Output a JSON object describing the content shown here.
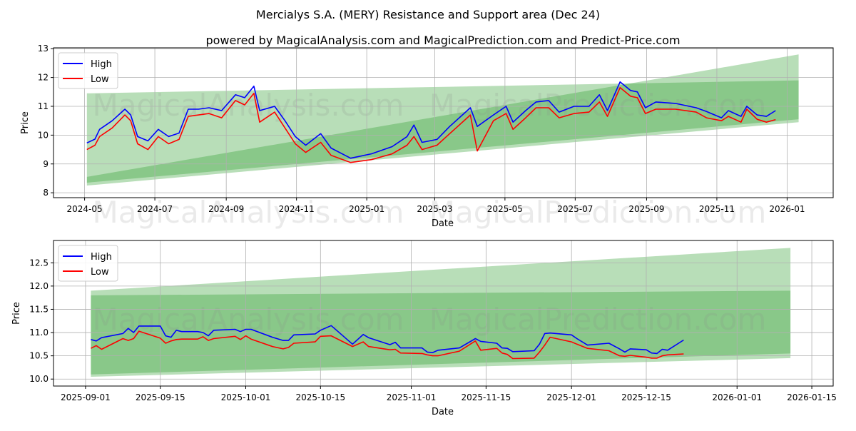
{
  "title": "Mercialys S.A. (MERY) Resistance and Support area (Dec 24)",
  "subtitle": "powered by MagicalAnalysis.com and MagicalPrediction.com and Predict-Price.com",
  "watermarks": [
    "MagicalAnalysis.com",
    "MagicalPrediction.com"
  ],
  "colors": {
    "high": "#0000ff",
    "low": "#ff0000",
    "band": "#2e9e2e",
    "grid": "#b0b0b0"
  },
  "chart_data": [
    {
      "type": "line",
      "xlabel": "Date",
      "ylabel": "Price",
      "xlim": [
        "2024-04-04",
        "2026-02-10"
      ],
      "ylim": [
        7.83,
        13.03
      ],
      "grid": true,
      "legend": {
        "placement": "top-left",
        "entries": [
          "High",
          "Low"
        ]
      },
      "xticks": [
        "2024-05",
        "2024-07",
        "2024-09",
        "2024-11",
        "2025-01",
        "2025-03",
        "2025-05",
        "2025-07",
        "2025-09",
        "2025-11",
        "2026-01"
      ],
      "xtick_dates": [
        "2024-05-01",
        "2024-07-01",
        "2024-09-01",
        "2024-11-01",
        "2025-01-01",
        "2025-03-01",
        "2025-05-01",
        "2025-07-01",
        "2025-09-01",
        "2025-11-01",
        "2026-01-01"
      ],
      "yticks": [
        8,
        9,
        10,
        11,
        12,
        13
      ],
      "bands": [
        {
          "start": "2024-05-03",
          "end": "2026-01-11",
          "lower": [
            8.35,
            10.55
          ],
          "upper": [
            11.45,
            11.9
          ]
        },
        {
          "start": "2024-05-03",
          "end": "2026-01-11",
          "lower": [
            8.25,
            10.45
          ],
          "upper": [
            8.55,
            12.8
          ]
        }
      ],
      "x": [
        "2024-05-03",
        "2024-05-10",
        "2024-05-14",
        "2024-05-25",
        "2024-06-05",
        "2024-06-10",
        "2024-06-16",
        "2024-06-25",
        "2024-07-04",
        "2024-07-13",
        "2024-07-22",
        "2024-07-30",
        "2024-08-08",
        "2024-08-17",
        "2024-08-28",
        "2024-09-09",
        "2024-09-17",
        "2024-09-25",
        "2024-09-30",
        "2024-10-13",
        "2024-10-22",
        "2024-10-31",
        "2024-11-09",
        "2024-11-22",
        "2024-12-01",
        "2024-12-18",
        "2025-01-05",
        "2025-01-23",
        "2025-02-05",
        "2025-02-11",
        "2025-02-18",
        "2025-03-03",
        "2025-03-14",
        "2025-04-01",
        "2025-04-07",
        "2025-04-21",
        "2025-05-02",
        "2025-05-08",
        "2025-05-19",
        "2025-05-28",
        "2025-06-08",
        "2025-06-17",
        "2025-06-30",
        "2025-07-13",
        "2025-07-22",
        "2025-07-29",
        "2025-08-09",
        "2025-08-18",
        "2025-08-24",
        "2025-08-31",
        "2025-09-09",
        "2025-09-26",
        "2025-10-14",
        "2025-10-23",
        "2025-11-05",
        "2025-11-11",
        "2025-11-22",
        "2025-11-27",
        "2025-12-06",
        "2025-12-14",
        "2025-12-22"
      ],
      "series": [
        {
          "name": "High",
          "values": [
            9.73,
            9.86,
            10.2,
            10.5,
            10.9,
            10.7,
            9.95,
            9.8,
            10.2,
            9.95,
            10.07,
            10.9,
            10.9,
            10.95,
            10.85,
            11.4,
            11.3,
            11.7,
            10.85,
            11.0,
            10.5,
            9.95,
            9.65,
            10.05,
            9.55,
            9.2,
            9.35,
            9.6,
            9.95,
            10.35,
            9.75,
            9.85,
            10.3,
            10.95,
            10.3,
            10.7,
            11.0,
            10.45,
            10.85,
            11.15,
            11.2,
            10.8,
            11.0,
            11.0,
            11.4,
            10.85,
            11.85,
            11.55,
            11.5,
            10.95,
            11.15,
            11.1,
            10.95,
            10.82,
            10.6,
            10.85,
            10.65,
            11.0,
            10.7,
            10.65,
            10.85
          ]
        },
        {
          "name": "Low",
          "values": [
            9.5,
            9.65,
            9.95,
            10.25,
            10.7,
            10.5,
            9.7,
            9.5,
            9.95,
            9.7,
            9.85,
            10.65,
            10.7,
            10.75,
            10.6,
            11.2,
            11.05,
            11.45,
            10.45,
            10.8,
            10.25,
            9.7,
            9.4,
            9.75,
            9.3,
            9.05,
            9.15,
            9.35,
            9.65,
            9.95,
            9.5,
            9.65,
            10.05,
            10.7,
            9.45,
            10.5,
            10.75,
            10.2,
            10.6,
            10.95,
            10.95,
            10.6,
            10.75,
            10.8,
            11.15,
            10.65,
            11.65,
            11.35,
            11.3,
            10.75,
            10.9,
            10.9,
            10.8,
            10.6,
            10.5,
            10.65,
            10.45,
            10.9,
            10.55,
            10.45,
            10.54
          ]
        }
      ]
    },
    {
      "type": "line",
      "xlabel": "Date",
      "ylabel": "Price",
      "xlim": [
        "2025-08-26",
        "2026-01-19"
      ],
      "ylim": [
        9.85,
        12.98
      ],
      "grid": true,
      "legend": {
        "placement": "top-left",
        "entries": [
          "High",
          "Low"
        ]
      },
      "xticks": [
        "2025-09-01",
        "2025-09-15",
        "2025-10-01",
        "2025-10-15",
        "2025-11-01",
        "2025-11-15",
        "2025-12-01",
        "2025-12-15",
        "2026-01-01",
        "2026-01-15"
      ],
      "xtick_dates": [
        "2025-09-01",
        "2025-09-15",
        "2025-10-01",
        "2025-10-15",
        "2025-11-01",
        "2025-11-15",
        "2025-12-01",
        "2025-12-15",
        "2026-01-01",
        "2026-01-15"
      ],
      "yticks": [
        "10.0",
        "10.5",
        "11.0",
        "11.5",
        "12.0",
        "12.5"
      ],
      "bands": [
        {
          "start": "2025-09-02",
          "end": "2026-01-11",
          "lower": [
            10.1,
            10.55
          ],
          "upper": [
            11.8,
            11.9
          ]
        },
        {
          "start": "2025-09-02",
          "end": "2026-01-11",
          "lower": [
            10.05,
            10.45
          ],
          "upper": [
            11.9,
            12.82
          ]
        }
      ],
      "x": [
        "2025-09-02",
        "2025-09-03",
        "2025-09-04",
        "2025-09-08",
        "2025-09-09",
        "2025-09-10",
        "2025-09-11",
        "2025-09-15",
        "2025-09-16",
        "2025-09-17",
        "2025-09-18",
        "2025-09-19",
        "2025-09-22",
        "2025-09-23",
        "2025-09-24",
        "2025-09-25",
        "2025-09-29",
        "2025-09-30",
        "2025-10-01",
        "2025-10-02",
        "2025-10-06",
        "2025-10-08",
        "2025-10-09",
        "2025-10-10",
        "2025-10-14",
        "2025-10-15",
        "2025-10-17",
        "2025-10-21",
        "2025-10-23",
        "2025-10-24",
        "2025-10-28",
        "2025-10-29",
        "2025-10-30",
        "2025-11-03",
        "2025-11-04",
        "2025-11-05",
        "2025-11-06",
        "2025-11-10",
        "2025-11-13",
        "2025-11-14",
        "2025-11-17",
        "2025-11-18",
        "2025-11-19",
        "2025-11-20",
        "2025-11-24",
        "2025-11-25",
        "2025-11-26",
        "2025-11-27",
        "2025-12-01",
        "2025-12-02",
        "2025-12-04",
        "2025-12-08",
        "2025-12-10",
        "2025-12-11",
        "2025-12-12",
        "2025-12-15",
        "2025-12-16",
        "2025-12-17",
        "2025-12-18",
        "2025-12-19",
        "2025-12-22"
      ],
      "series": [
        {
          "name": "High",
          "values": [
            10.85,
            10.82,
            10.89,
            10.98,
            11.09,
            11.0,
            11.14,
            11.14,
            10.93,
            10.9,
            11.05,
            11.02,
            11.02,
            11.0,
            10.93,
            11.05,
            11.07,
            11.02,
            11.07,
            11.07,
            10.9,
            10.83,
            10.83,
            10.95,
            10.97,
            11.05,
            11.15,
            10.75,
            10.96,
            10.89,
            10.74,
            10.79,
            10.67,
            10.67,
            10.58,
            10.57,
            10.62,
            10.67,
            10.87,
            10.81,
            10.77,
            10.67,
            10.66,
            10.59,
            10.61,
            10.75,
            10.98,
            10.99,
            10.95,
            10.87,
            10.73,
            10.77,
            10.65,
            10.58,
            10.65,
            10.63,
            10.56,
            10.55,
            10.64,
            10.62,
            10.84
          ]
        },
        {
          "name": "Low",
          "values": [
            10.66,
            10.72,
            10.64,
            10.87,
            10.83,
            10.87,
            11.03,
            10.88,
            10.77,
            10.82,
            10.85,
            10.86,
            10.86,
            10.91,
            10.83,
            10.87,
            10.92,
            10.85,
            10.93,
            10.86,
            10.7,
            10.65,
            10.68,
            10.77,
            10.8,
            10.92,
            10.93,
            10.7,
            10.8,
            10.7,
            10.63,
            10.64,
            10.56,
            10.55,
            10.52,
            10.5,
            10.5,
            10.6,
            10.82,
            10.62,
            10.66,
            10.56,
            10.53,
            10.44,
            10.45,
            10.58,
            10.73,
            10.9,
            10.8,
            10.75,
            10.66,
            10.61,
            10.5,
            10.49,
            10.51,
            10.47,
            10.45,
            10.45,
            10.5,
            10.52,
            10.54
          ]
        }
      ]
    }
  ]
}
